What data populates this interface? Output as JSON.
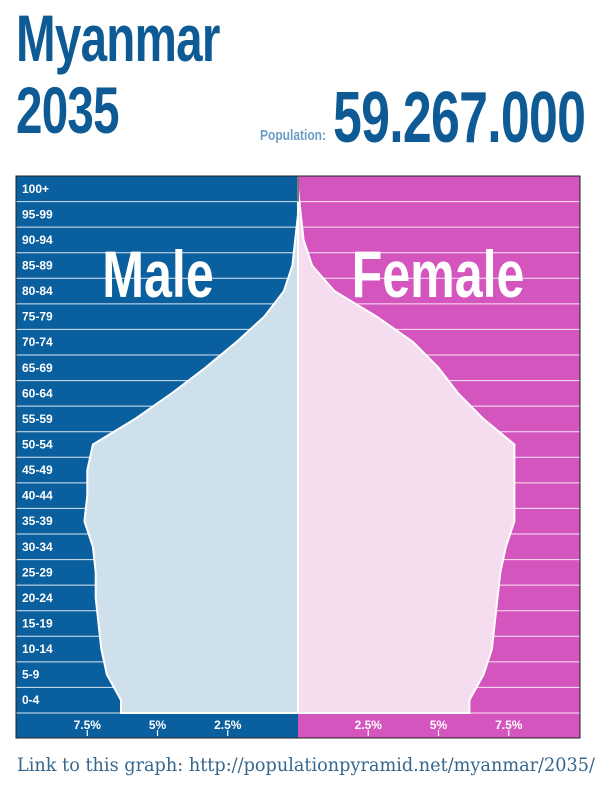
{
  "header": {
    "country": "Myanmar",
    "year": "2035",
    "population_label": "Population:",
    "population_value": "59.267.000"
  },
  "footer": {
    "link_text": "Link to this graph: http://populationpyramid.net/myanmar/2035/"
  },
  "colors": {
    "male_bg": "#0a5f9e",
    "female_bg": "#d455be",
    "male_fill": "#cde0ec",
    "female_fill": "#f6dcef",
    "title": "#0d5a94"
  },
  "chart_data": {
    "type": "bar",
    "orientation": "horizontal-pyramid",
    "categories": [
      "0-4",
      "5-9",
      "10-14",
      "15-19",
      "20-24",
      "25-29",
      "30-34",
      "35-39",
      "40-44",
      "45-49",
      "50-54",
      "55-59",
      "60-64",
      "65-69",
      "70-74",
      "75-79",
      "80-84",
      "85-89",
      "90-94",
      "95-99",
      "100+"
    ],
    "series": [
      {
        "name": "Male",
        "values": [
          6.3,
          6.8,
          7.0,
          7.1,
          7.2,
          7.2,
          7.3,
          7.6,
          7.5,
          7.5,
          7.3,
          5.8,
          4.5,
          3.3,
          2.2,
          1.2,
          0.5,
          0.2,
          0.1,
          0.0,
          0.0
        ]
      },
      {
        "name": "Female",
        "values": [
          6.1,
          6.6,
          6.9,
          7.0,
          7.1,
          7.2,
          7.4,
          7.7,
          7.7,
          7.7,
          7.7,
          6.6,
          5.7,
          5.0,
          4.1,
          2.8,
          1.3,
          0.5,
          0.2,
          0.1,
          0.0
        ]
      }
    ],
    "x_tick_labels_left": [
      "7.5%",
      "5%",
      "2.5%"
    ],
    "x_tick_labels_right": [
      "2.5%",
      "5%",
      "7.5%"
    ],
    "x_ticks_left_values": [
      7.5,
      5,
      2.5
    ],
    "x_ticks_right_values": [
      2.5,
      5,
      7.5
    ],
    "xlim": [
      0,
      10
    ],
    "grid": true
  }
}
